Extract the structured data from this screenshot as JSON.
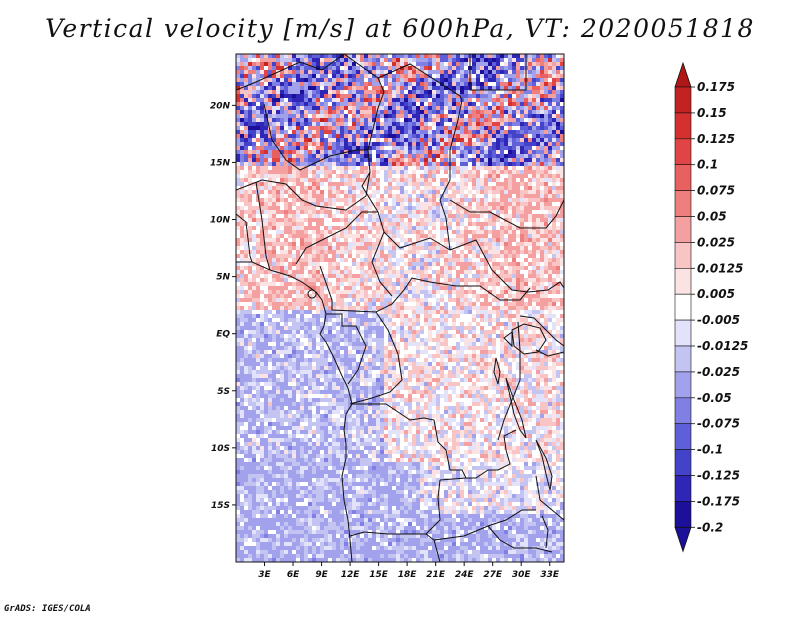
{
  "title": "Vertical velocity [m/s] at 600hPa, VT: 2020051818",
  "credit": "GrADS: IGES/COLA",
  "colors": {
    "background": "#ffffff",
    "border": "#111111"
  },
  "chart_data": {
    "type": "heatmap",
    "variable": "Vertical velocity",
    "units": "m/s",
    "level": "600hPa",
    "valid_time": "2020051818",
    "lon_range": [
      0,
      34.5
    ],
    "lat_range": [
      -20,
      24.5
    ],
    "x_ticks": [
      {
        "lon": 3,
        "label": "3E"
      },
      {
        "lon": 6,
        "label": "6E"
      },
      {
        "lon": 9,
        "label": "9E"
      },
      {
        "lon": 12,
        "label": "12E"
      },
      {
        "lon": 15,
        "label": "15E"
      },
      {
        "lon": 18,
        "label": "18E"
      },
      {
        "lon": 21,
        "label": "21E"
      },
      {
        "lon": 24,
        "label": "24E"
      },
      {
        "lon": 27,
        "label": "27E"
      },
      {
        "lon": 30,
        "label": "30E"
      },
      {
        "lon": 33,
        "label": "33E"
      }
    ],
    "y_ticks": [
      {
        "lat": 20,
        "label": "20N"
      },
      {
        "lat": 15,
        "label": "15N"
      },
      {
        "lat": 10,
        "label": "10N"
      },
      {
        "lat": 5,
        "label": "5N"
      },
      {
        "lat": 0,
        "label": "EQ"
      },
      {
        "lat": -5,
        "label": "5S"
      },
      {
        "lat": -10,
        "label": "10S"
      },
      {
        "lat": -15,
        "label": "15S"
      }
    ],
    "colorbar": {
      "upper_arrow_color": "#b01818",
      "lower_arrow_color": "#1c0f99",
      "entries": [
        {
          "label": "0.175",
          "color": "#b01818"
        },
        {
          "label": "0.15",
          "color": "#c42222"
        },
        {
          "label": "0.125",
          "color": "#d43030"
        },
        {
          "label": "0.1",
          "color": "#e04444"
        },
        {
          "label": "0.075",
          "color": "#e86060"
        },
        {
          "label": "0.05",
          "color": "#ef7f7f"
        },
        {
          "label": "0.025",
          "color": "#f5a0a0"
        },
        {
          "label": "0.0125",
          "color": "#f9c4c4"
        },
        {
          "label": "0.005",
          "color": "#fce3e3"
        },
        {
          "label": "-0.005",
          "color": "#ffffff"
        },
        {
          "label": "-0.0125",
          "color": "#e2e2fa"
        },
        {
          "label": "-0.025",
          "color": "#c4c4f3"
        },
        {
          "label": "-0.05",
          "color": "#a2a2ec"
        },
        {
          "label": "-0.075",
          "color": "#8080e4"
        },
        {
          "label": "-0.1",
          "color": "#5f5fd9"
        },
        {
          "label": "-0.125",
          "color": "#4343ca"
        },
        {
          "label": "-0.175",
          "color": "#2f26b8"
        },
        {
          "label": "-0.2",
          "color": "#1c0f99"
        }
      ]
    }
  }
}
